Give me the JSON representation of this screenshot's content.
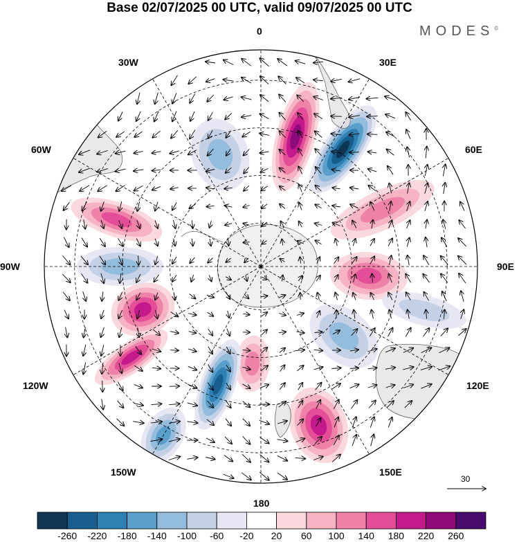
{
  "title": "Base 02/07/2025 00 UTC, valid 09/07/2025 00 UTC",
  "brand": "MODES",
  "brand_mark": "©",
  "longitude_labels": {
    "lon_0": "0",
    "lon_30e": "30E",
    "lon_60e": "60E",
    "lon_90e": "90E",
    "lon_120e": "120E",
    "lon_150e": "150E",
    "lon_180": "180",
    "lon_150w": "150W",
    "lon_120w": "120W",
    "lon_90w": "90W",
    "lon_60w": "60W",
    "lon_30w": "30W"
  },
  "reference_vector": {
    "value": "30"
  },
  "colorbar": {
    "ticks": [
      "-260",
      "-220",
      "-180",
      "-140",
      "-100",
      "-60",
      "-20",
      "20",
      "60",
      "100",
      "140",
      "180",
      "220",
      "260"
    ],
    "colors": [
      "#0e3652",
      "#175e8c",
      "#2f81b4",
      "#5a9fcb",
      "#94bcdc",
      "#c4d0e6",
      "#e7e7f3",
      "#ffffff",
      "#f9d8de",
      "#f5b3c4",
      "#ef82a9",
      "#e34e97",
      "#c4198a",
      "#8c0a7a",
      "#4a0b6e"
    ]
  },
  "anomaly_centers": [
    {
      "lon": 15,
      "colat": 0.62,
      "value": 230,
      "rx": 0.09,
      "ry": 0.26,
      "rot": 0
    },
    {
      "lon": 35,
      "colat": 0.66,
      "value": -260,
      "rx": 0.09,
      "ry": 0.24,
      "rot": 0
    },
    {
      "lon": 65,
      "colat": 0.62,
      "value": 100,
      "rx": 0.09,
      "ry": 0.26,
      "rot": 0
    },
    {
      "lon": 95,
      "colat": 0.5,
      "value": 150,
      "rx": 0.11,
      "ry": 0.18,
      "rot": 0
    },
    {
      "lon": 105,
      "colat": 0.78,
      "value": -60,
      "rx": 0.07,
      "ry": 0.2,
      "rot": 0
    },
    {
      "lon": 130,
      "colat": 0.5,
      "value": -130,
      "rx": 0.12,
      "ry": 0.18,
      "rot": 0
    },
    {
      "lon": 160,
      "colat": 0.78,
      "value": 200,
      "rx": 0.13,
      "ry": 0.18,
      "rot": 0
    },
    {
      "lon": 185,
      "colat": 0.45,
      "value": 110,
      "rx": 0.08,
      "ry": 0.13,
      "rot": 0
    },
    {
      "lon": 200,
      "colat": 0.58,
      "value": -230,
      "rx": 0.08,
      "ry": 0.22,
      "rot": 0
    },
    {
      "lon": 210,
      "colat": 0.9,
      "value": -150,
      "rx": 0.09,
      "ry": 0.14,
      "rot": 0
    },
    {
      "lon": 235,
      "colat": 0.73,
      "value": 210,
      "rx": 0.07,
      "ry": 0.2,
      "rot": 0
    },
    {
      "lon": 250,
      "colat": 0.58,
      "value": 190,
      "rx": 0.12,
      "ry": 0.15,
      "rot": 0
    },
    {
      "lon": 270,
      "colat": 0.65,
      "value": -130,
      "rx": 0.09,
      "ry": 0.2,
      "rot": 0
    },
    {
      "lon": 288,
      "colat": 0.7,
      "value": 140,
      "rx": 0.08,
      "ry": 0.22,
      "rot": 0
    },
    {
      "lon": 340,
      "colat": 0.55,
      "value": -110,
      "rx": 0.13,
      "ry": 0.17,
      "rot": 0
    }
  ]
}
